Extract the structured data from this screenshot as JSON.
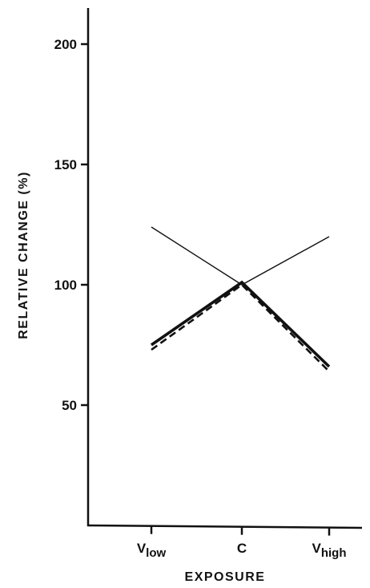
{
  "chart_data": {
    "type": "line",
    "title": "",
    "xlabel": "EXPOSURE",
    "ylabel": "RELATIVE  CHANGE (%)",
    "categories": [
      "V",
      "C",
      "V"
    ],
    "category_subscripts": [
      "low",
      "",
      "high"
    ],
    "yticks": [
      50,
      100,
      150,
      200
    ],
    "ylim": [
      0,
      215
    ],
    "grid": false,
    "series": [
      {
        "values": [
          124,
          100,
          120
        ],
        "style": "thin-solid"
      },
      {
        "values": [
          75,
          101,
          66
        ],
        "style": "thick-solid"
      },
      {
        "values": [
          73,
          100,
          64
        ],
        "style": "dashed"
      }
    ],
    "colors": {
      "line": "#111111",
      "background": "#ffffff"
    }
  }
}
